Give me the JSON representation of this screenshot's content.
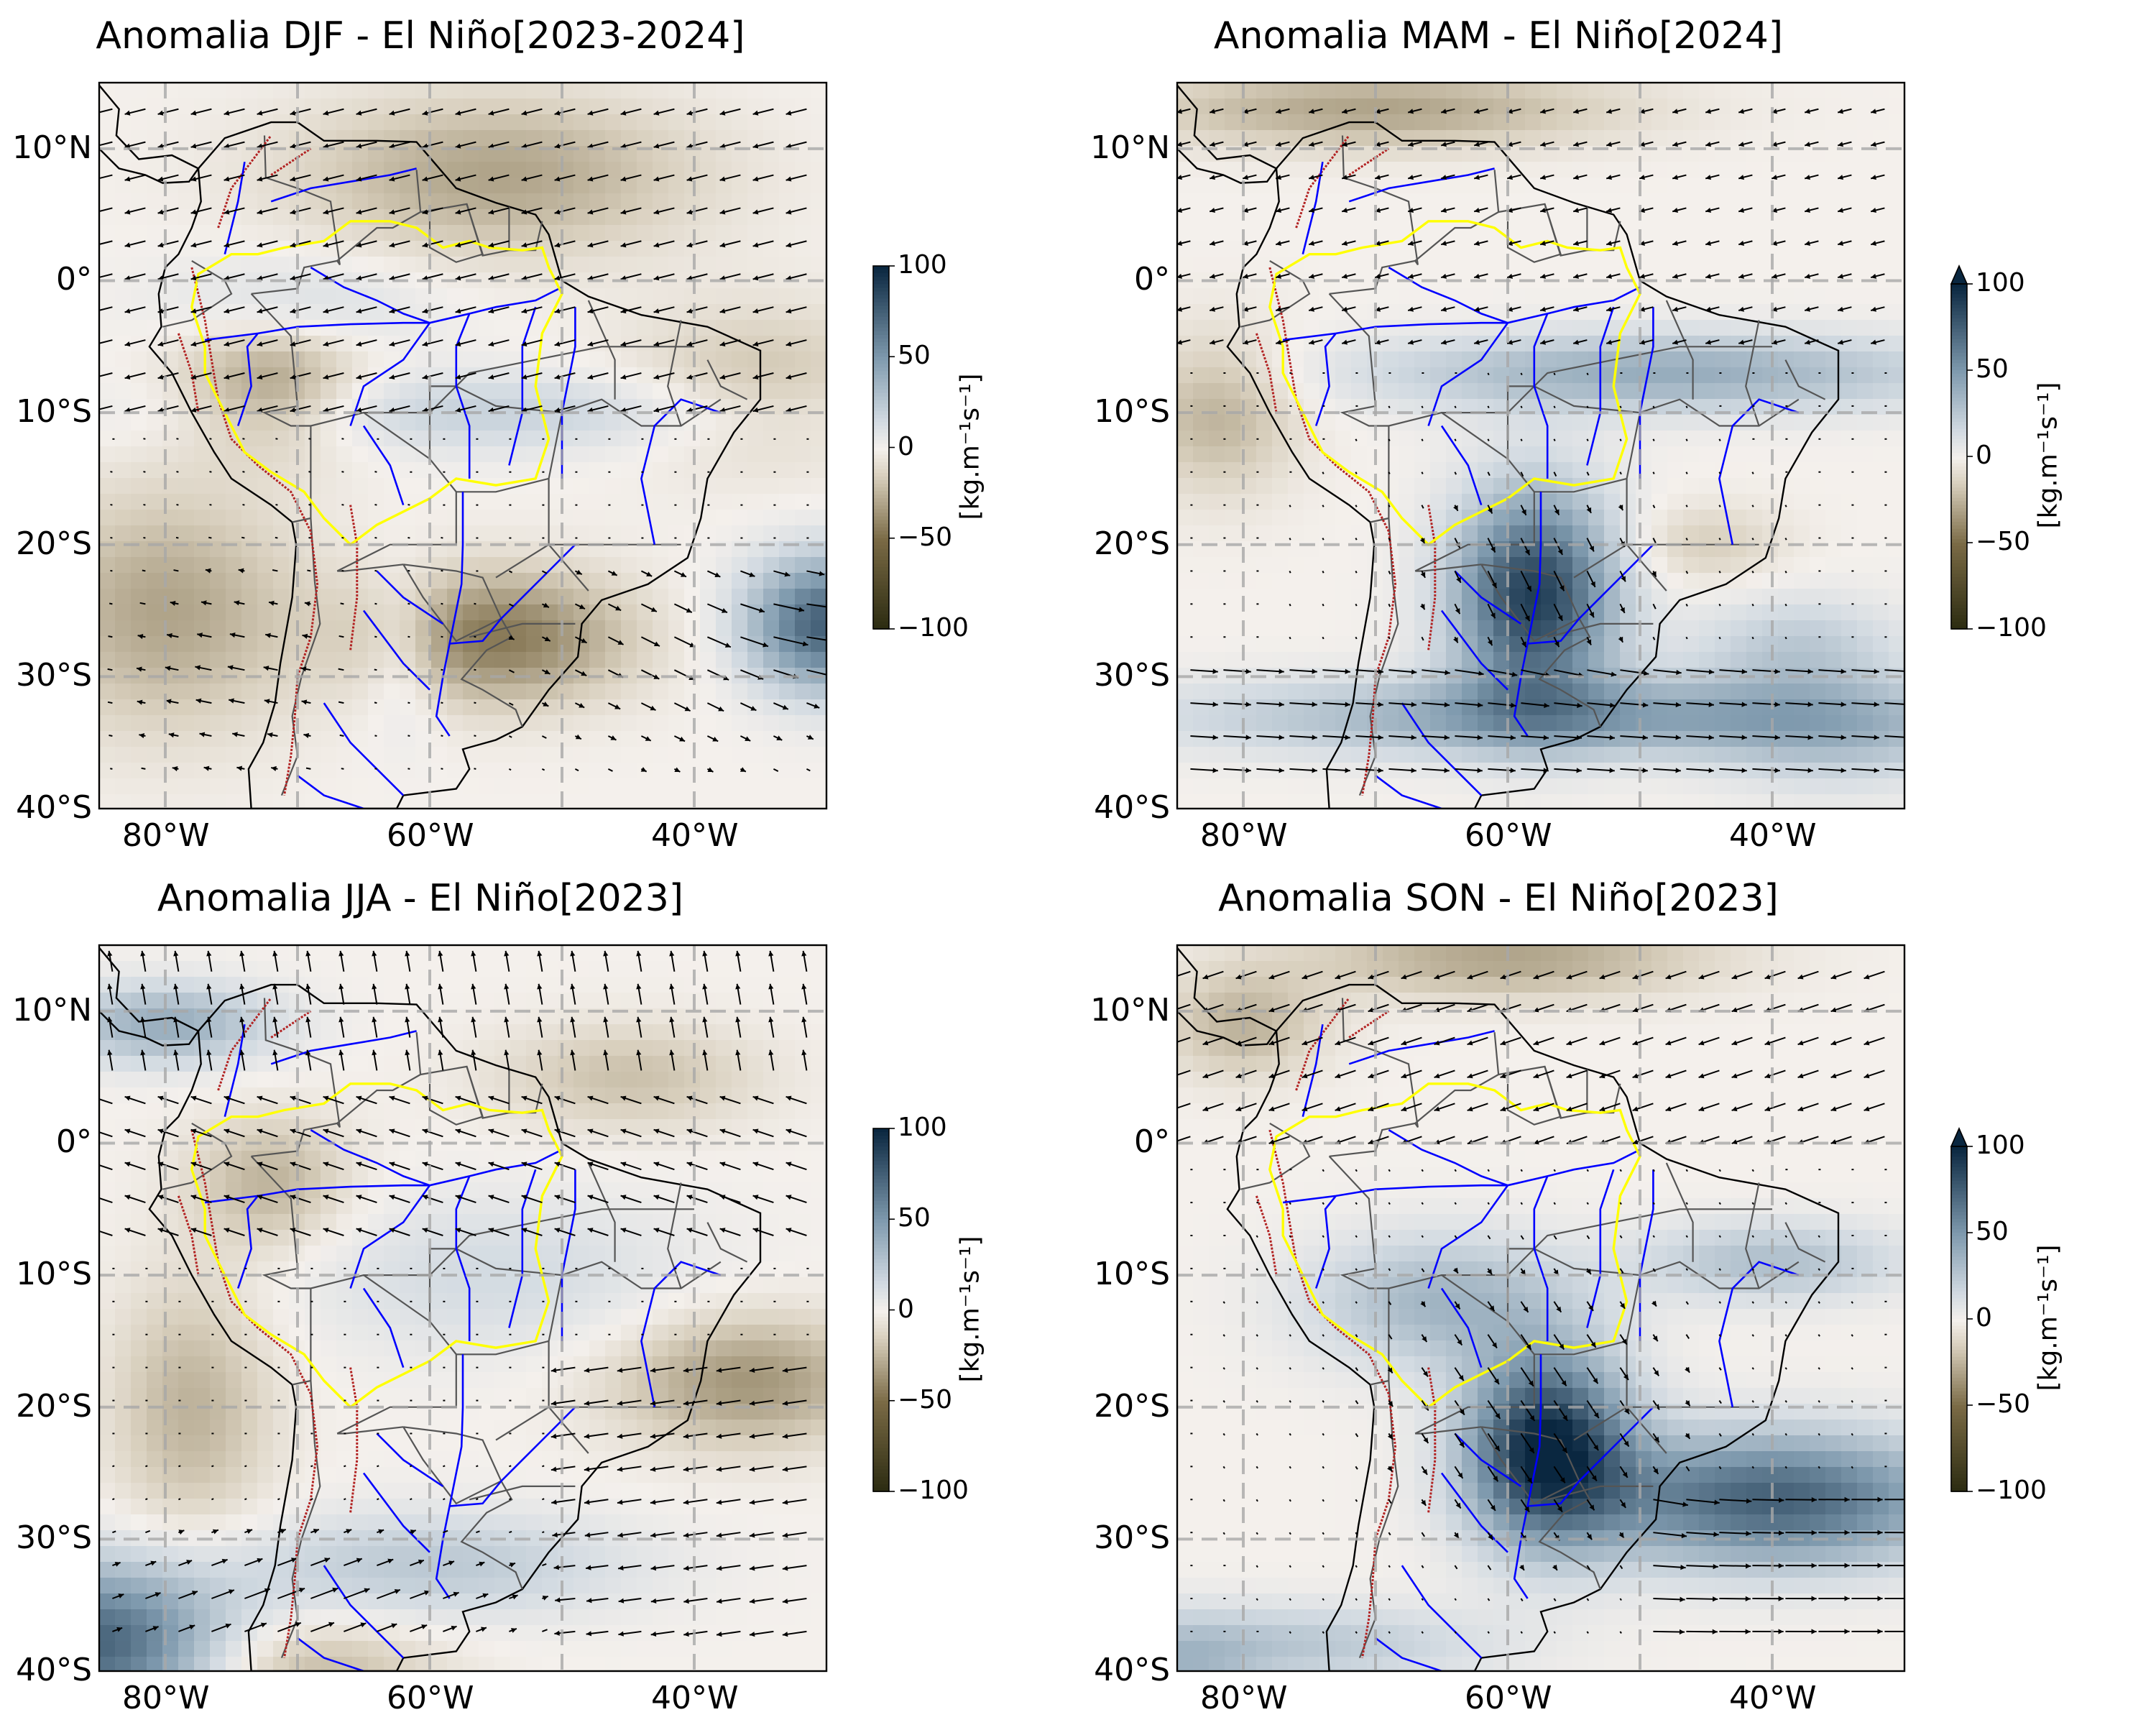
{
  "panels": [
    {
      "title": "Anomalia DJF - El Niño[2023-2024]",
      "colorbar_extend_max": false,
      "field": "djf"
    },
    {
      "title": "Anomalia MAM - El Niño[2024]",
      "colorbar_extend_max": true,
      "field": "mam"
    },
    {
      "title": "Anomalia JJA - El Niño[2023]",
      "colorbar_extend_max": false,
      "field": "jja"
    },
    {
      "title": "Anomalia SON - El Niño[2023]",
      "colorbar_extend_max": true,
      "field": "son"
    }
  ],
  "lat_labels": [
    "10°N",
    "0°",
    "10°S",
    "20°S",
    "30°S",
    "40°S"
  ],
  "lat_values": [
    10,
    0,
    -10,
    -20,
    -30,
    -40
  ],
  "lon_labels": [
    "80°W",
    "60°W",
    "40°W"
  ],
  "lon_values": [
    -80,
    -60,
    -40
  ],
  "gridlines": {
    "lon": [
      -80,
      -70,
      -60,
      -50,
      -40
    ],
    "lat": [
      10,
      0,
      -10,
      -20,
      -30
    ]
  },
  "extent": {
    "lon_min": -85,
    "lon_max": -30,
    "lat_min": -40,
    "lat_max": 15
  },
  "colorbar": {
    "ticks": [
      "100",
      "50",
      "0",
      "−50",
      "−100"
    ],
    "tick_values": [
      100,
      50,
      0,
      -50,
      -100
    ],
    "range": [
      -100,
      100
    ],
    "unit": "[kg.m⁻¹s⁻¹]",
    "colors": [
      "#2a2a10",
      "#7a6a45",
      "#d8cfbd",
      "#f4f0ec",
      "#d3dbe2",
      "#7f9aae",
      "#0a2740"
    ]
  },
  "colors": {
    "coast": "#000000",
    "borders": "#555555",
    "rivers": "#0000ff",
    "basin": "#ffff00",
    "andes_contour": "#b22222",
    "grid": "#a8a8a8"
  }
}
